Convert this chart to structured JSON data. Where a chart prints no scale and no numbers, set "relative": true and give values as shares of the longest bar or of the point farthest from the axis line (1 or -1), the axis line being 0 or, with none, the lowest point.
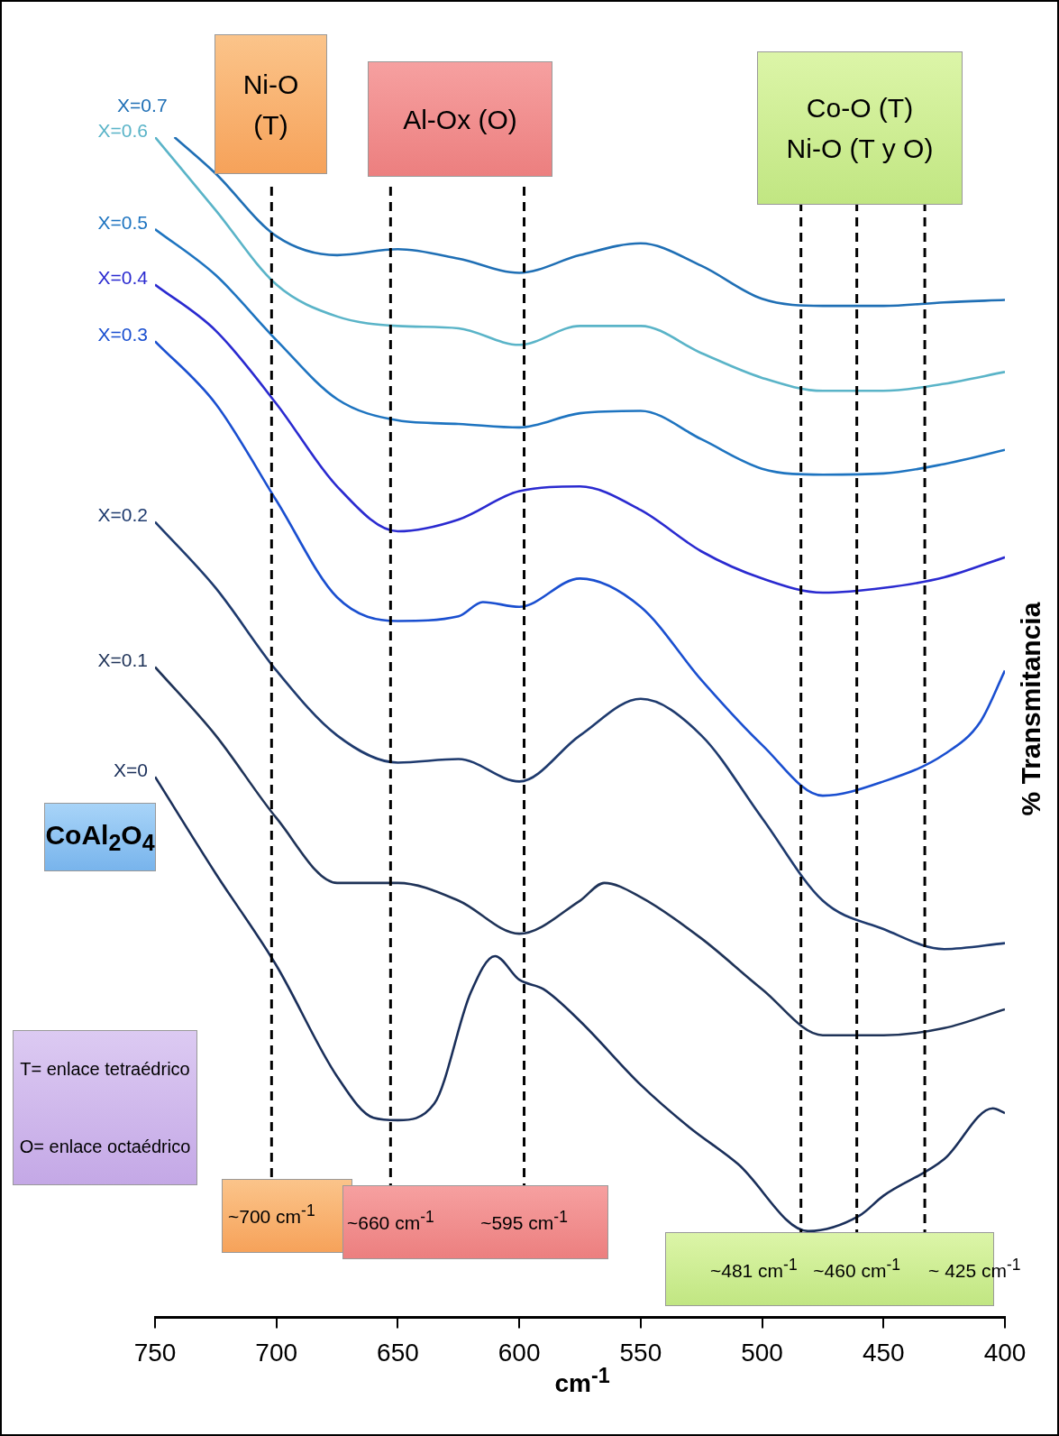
{
  "chart_data": {
    "type": "line",
    "relative": true,
    "xlabel": "cm$^{-1}$",
    "ylabel": "% Transmitancia",
    "xlim": [
      750,
      400
    ],
    "xticks": [
      750,
      700,
      650,
      600,
      550,
      500,
      450,
      400
    ],
    "grid": false,
    "legend": false,
    "marker": "none",
    "line_style": "solid",
    "series": [
      {
        "name": "X=0.7",
        "color": "#1f6fb5",
        "x": [
          742,
          725,
          700,
          675,
          650,
          625,
          600,
          575,
          550,
          525,
          500,
          475,
          450,
          425,
          400
        ],
        "values": [
          1.0,
          0.969,
          0.916,
          0.9,
          0.905,
          0.897,
          0.885,
          0.9,
          0.91,
          0.891,
          0.863,
          0.857,
          0.857,
          0.86,
          0.862
        ]
      },
      {
        "name": "X=0.6",
        "color": "#5ab4c8",
        "x": [
          750,
          725,
          700,
          675,
          650,
          625,
          600,
          575,
          550,
          525,
          500,
          475,
          450,
          425,
          400
        ],
        "values": [
          1.0,
          0.938,
          0.875,
          0.848,
          0.84,
          0.838,
          0.824,
          0.84,
          0.84,
          0.817,
          0.796,
          0.785,
          0.785,
          0.791,
          0.801
        ]
      },
      {
        "name": "X=0.5",
        "color": "#1e74c0",
        "x": [
          750,
          725,
          700,
          675,
          650,
          625,
          600,
          575,
          550,
          525,
          500,
          475,
          450,
          425,
          400
        ],
        "values": [
          0.922,
          0.883,
          0.828,
          0.778,
          0.76,
          0.757,
          0.754,
          0.766,
          0.768,
          0.744,
          0.719,
          0.714,
          0.715,
          0.723,
          0.735
        ]
      },
      {
        "name": "X=0.4",
        "color": "#2a2ad0",
        "x": [
          750,
          725,
          700,
          675,
          650,
          625,
          600,
          575,
          550,
          525,
          500,
          475,
          450,
          425,
          400
        ],
        "values": [
          0.875,
          0.836,
          0.774,
          0.704,
          0.666,
          0.676,
          0.7,
          0.704,
          0.684,
          0.649,
          0.626,
          0.614,
          0.618,
          0.627,
          0.644
        ]
      },
      {
        "name": "X=0.3",
        "color": "#1a4fd0",
        "x": [
          750,
          725,
          700,
          675,
          650,
          625,
          615,
          600,
          575,
          550,
          525,
          500,
          475,
          450,
          425,
          410,
          400
        ],
        "values": [
          0.827,
          0.774,
          0.692,
          0.61,
          0.59,
          0.594,
          0.606,
          0.602,
          0.626,
          0.602,
          0.54,
          0.485,
          0.442,
          0.454,
          0.477,
          0.505,
          0.548
        ]
      },
      {
        "name": "X=0.2",
        "color": "#1e3a6e",
        "x": [
          750,
          725,
          700,
          675,
          650,
          625,
          600,
          575,
          550,
          525,
          500,
          475,
          450,
          425,
          400
        ],
        "values": [
          0.674,
          0.618,
          0.548,
          0.493,
          0.47,
          0.473,
          0.454,
          0.493,
          0.524,
          0.493,
          0.423,
          0.353,
          0.329,
          0.312,
          0.317
        ]
      },
      {
        "name": "X=0.1",
        "color": "#1f3358",
        "x": [
          750,
          725,
          700,
          675,
          650,
          625,
          600,
          575,
          565,
          550,
          525,
          500,
          475,
          450,
          425,
          400
        ],
        "values": [
          0.551,
          0.493,
          0.423,
          0.368,
          0.368,
          0.353,
          0.325,
          0.353,
          0.368,
          0.356,
          0.321,
          0.278,
          0.239,
          0.239,
          0.245,
          0.261
        ]
      },
      {
        "name": "X=0",
        "color": "#1a2f5a",
        "x": [
          750,
          725,
          700,
          675,
          660,
          650,
          635,
          620,
          610,
          600,
          590,
          575,
          550,
          530,
          510,
          481,
          460,
          450,
          425,
          405,
          400
        ],
        "values": [
          0.458,
          0.376,
          0.298,
          0.204,
          0.169,
          0.167,
          0.181,
          0.275,
          0.306,
          0.286,
          0.278,
          0.251,
          0.197,
          0.161,
          0.13,
          0.073,
          0.086,
          0.103,
          0.134,
          0.177,
          0.173
        ]
      }
    ],
    "ref_lines": [
      {
        "axis": "x",
        "value": 702,
        "label": "~700 cm$^{-1}$",
        "line_style": "dashed"
      },
      {
        "axis": "x",
        "value": 653,
        "label": "~660 cm$^{-1}$",
        "line_style": "dashed"
      },
      {
        "axis": "x",
        "value": 598,
        "label": "~595 cm$^{-1}$",
        "line_style": "dashed"
      },
      {
        "axis": "x",
        "value": 484,
        "label": "~481 cm$^{-1}$",
        "line_style": "dashed"
      },
      {
        "axis": "x",
        "value": 461,
        "label": "~460 cm$^{-1}$",
        "line_style": "dashed"
      },
      {
        "axis": "x",
        "value": 433,
        "label": "~ 425 cm$^{-1}$",
        "line_style": "dashed"
      }
    ],
    "annotations": [
      "Ni-O\n(T)",
      "Al-Ox (O)",
      "Co-O (T)\nNi-O (T y O)",
      "CoAl$_{2}$O$_{4}$",
      "T= enlace tetraédrico",
      "O= enlace octaédrico"
    ]
  }
}
